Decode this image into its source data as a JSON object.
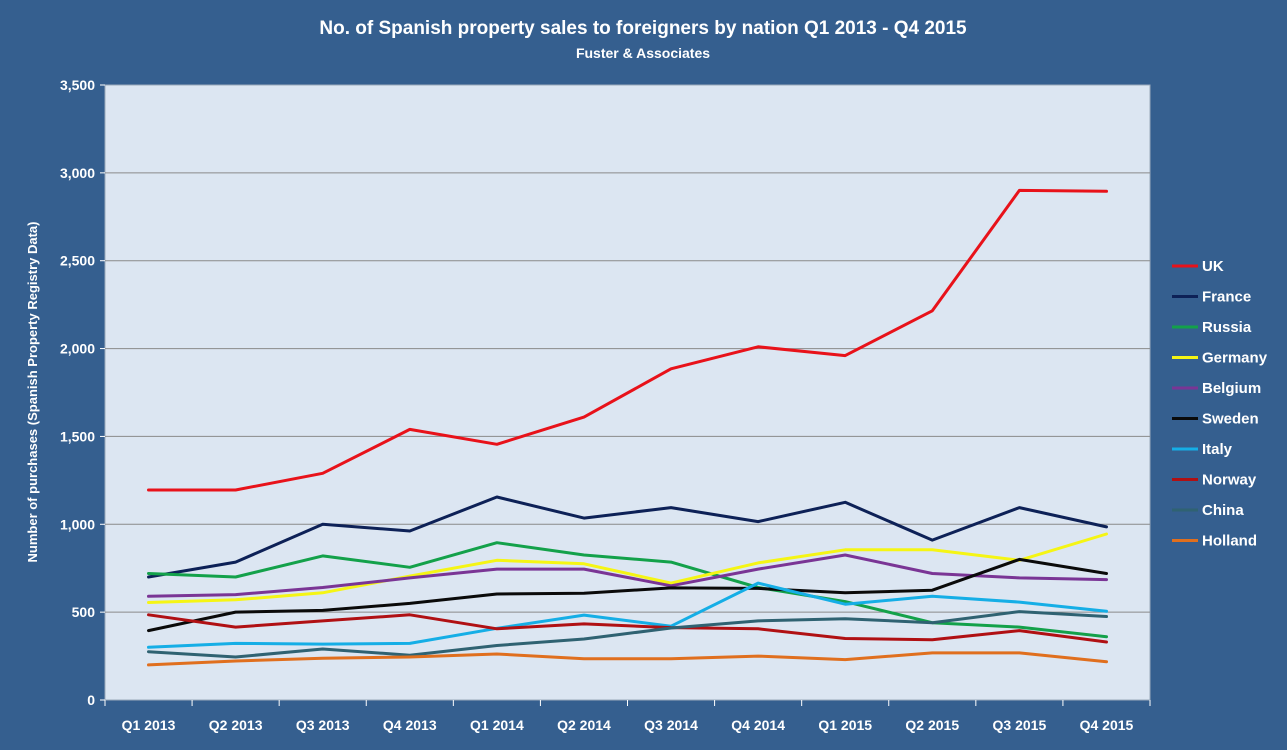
{
  "chart_data": {
    "type": "line",
    "title": "No. of Spanish property sales to foreigners by nation Q1 2013 - Q4 2015",
    "subtitle": "Fuster & Associates",
    "xlabel": "",
    "ylabel": "Number of purchases (Spanish Property Registry Data)",
    "ylim": [
      0,
      3500
    ],
    "yticks": [
      0,
      500,
      1000,
      1500,
      2000,
      2500,
      3000,
      3500
    ],
    "ytick_labels": [
      "0",
      "500",
      "1,000",
      "1,500",
      "2,000",
      "2,500",
      "3,000",
      "3,500"
    ],
    "grid": true,
    "legend_position": "right",
    "categories": [
      "Q1 2013",
      "Q2 2013",
      "Q3 2013",
      "Q4 2013",
      "Q1 2014",
      "Q2 2014",
      "Q3 2014",
      "Q4 2014",
      "Q1 2015",
      "Q2 2015",
      "Q3 2015",
      "Q4 2015"
    ],
    "series": [
      {
        "name": "UK",
        "color": "#e8121a",
        "values": [
          1195,
          1195,
          1290,
          1540,
          1455,
          1610,
          1885,
          2010,
          1960,
          2215,
          2900,
          2895
        ]
      },
      {
        "name": "France",
        "color": "#0d2157",
        "values": [
          700,
          785,
          1000,
          962,
          1155,
          1035,
          1095,
          1015,
          1125,
          910,
          1095,
          985
        ]
      },
      {
        "name": "Russia",
        "color": "#13a14a",
        "values": [
          720,
          700,
          820,
          755,
          895,
          825,
          785,
          640,
          560,
          440,
          415,
          360
        ]
      },
      {
        "name": "Germany",
        "color": "#f5f514",
        "values": [
          555,
          570,
          610,
          705,
          795,
          775,
          665,
          780,
          855,
          855,
          795,
          945
        ]
      },
      {
        "name": "Belgium",
        "color": "#7a3595",
        "values": [
          590,
          600,
          640,
          695,
          745,
          745,
          650,
          745,
          825,
          720,
          695,
          685
        ]
      },
      {
        "name": "Sweden",
        "color": "#0a0a0a",
        "values": [
          395,
          500,
          510,
          550,
          603,
          608,
          638,
          635,
          610,
          625,
          800,
          720
        ]
      },
      {
        "name": "Italy",
        "color": "#15aee6",
        "values": [
          300,
          322,
          318,
          322,
          408,
          483,
          420,
          665,
          545,
          590,
          557,
          505
        ]
      },
      {
        "name": "Norway",
        "color": "#b01013",
        "values": [
          485,
          415,
          450,
          485,
          405,
          433,
          412,
          405,
          350,
          343,
          395,
          330
        ]
      },
      {
        "name": "China",
        "color": "#2f6272",
        "values": [
          275,
          245,
          290,
          255,
          310,
          347,
          410,
          450,
          462,
          440,
          503,
          475
        ]
      },
      {
        "name": "Holland",
        "color": "#e06f1e",
        "values": [
          200,
          222,
          238,
          245,
          262,
          235,
          235,
          250,
          230,
          268,
          268,
          218
        ]
      }
    ]
  }
}
